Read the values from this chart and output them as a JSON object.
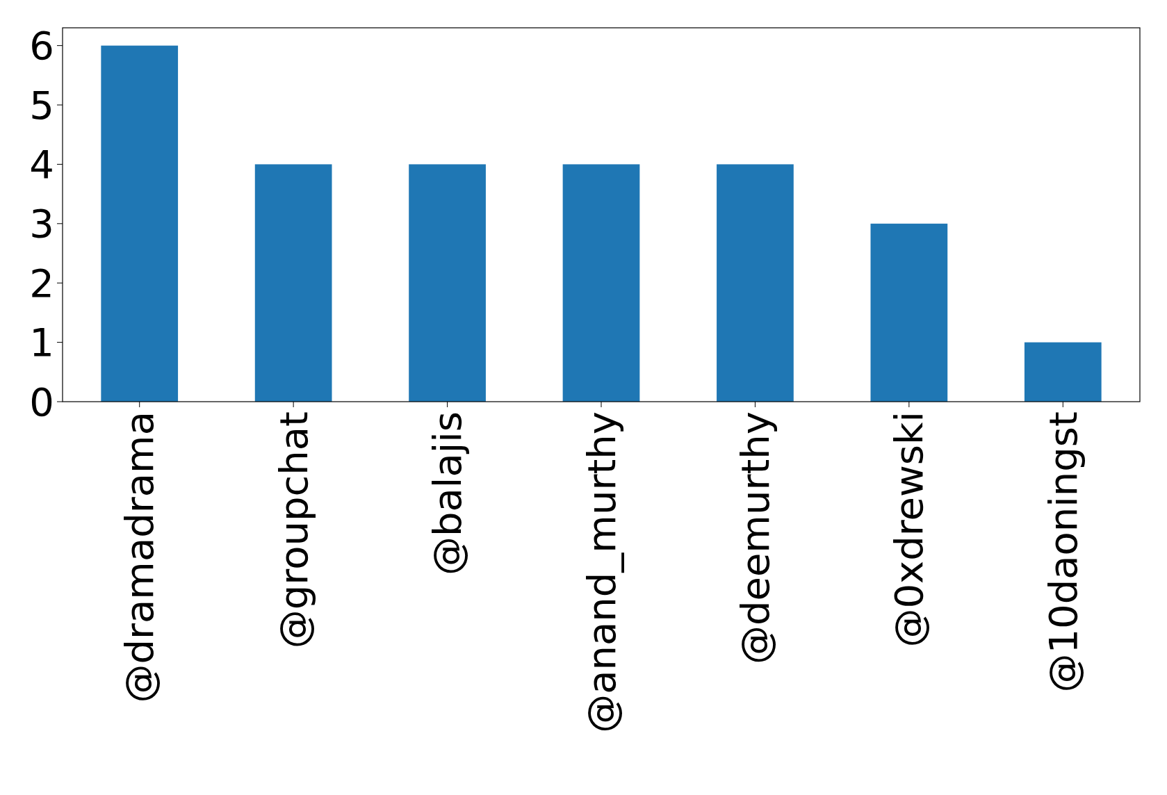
{
  "chart_data": {
    "type": "bar",
    "categories": [
      "@dramadrama",
      "@groupchat",
      "@balajis",
      "@anand_murthy",
      "@deemurthy",
      "@0xdrewski",
      "@10daoningst"
    ],
    "values": [
      6,
      4,
      4,
      4,
      4,
      3,
      1
    ],
    "color": "#1f77b4",
    "ylim": [
      0,
      6.3
    ],
    "yticks": [
      0,
      1,
      2,
      3,
      4,
      5,
      6
    ],
    "grid": false
  }
}
